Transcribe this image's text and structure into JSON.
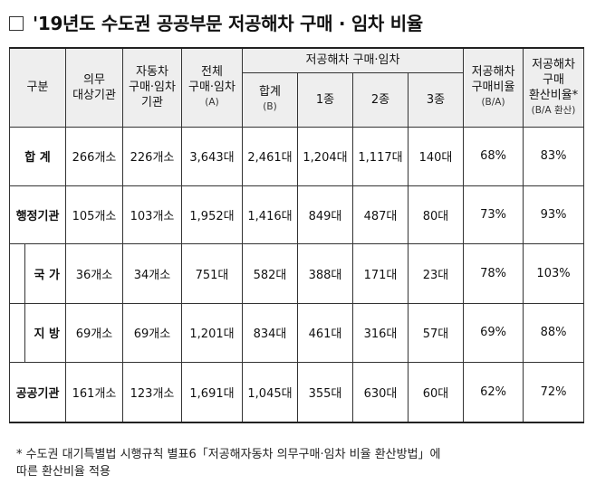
{
  "title": "'19년도 수도권 공공부문 저공해차 구매 · 임차 비율",
  "header": {
    "category": "구분",
    "mandatory": "의무\n대상기관",
    "purchased": "자동차\n구매·임차\n기관",
    "total": "전체\n구매·임차",
    "total_unit": "(A)",
    "lev_group": "저공해차 구매·임차",
    "sum": "합계",
    "sum_unit": "(B)",
    "type1": "1종",
    "type2": "2종",
    "type3": "3종",
    "ratio": "저공해차\n구매비율",
    "ratio_unit": "(B/A)",
    "conv": "저공해차\n구매\n환산비율*",
    "conv_unit": "(B/A 환산)"
  },
  "rows": [
    {
      "label": "합  계",
      "mandatory": "266개소",
      "purchased": "226개소",
      "total": "3,643대",
      "sum": "2,461대",
      "t1": "1,204대",
      "t2": "1,117대",
      "t3": "140대",
      "ratio": "68%",
      "conv": "83%"
    },
    {
      "label": "행정기관",
      "mandatory": "105개소",
      "purchased": "103개소",
      "total": "1,952대",
      "sum": "1,416대",
      "t1": "849대",
      "t2": "487대",
      "t3": "80대",
      "ratio": "73%",
      "conv": "93%"
    },
    {
      "label": "국 가",
      "mandatory": "36개소",
      "purchased": "34개소",
      "total": "751대",
      "sum": "582대",
      "t1": "388대",
      "t2": "171대",
      "t3": "23대",
      "ratio": "78%",
      "conv": "103%"
    },
    {
      "label": "지 방",
      "mandatory": "69개소",
      "purchased": "69개소",
      "total": "1,201대",
      "sum": "834대",
      "t1": "461대",
      "t2": "316대",
      "t3": "57대",
      "ratio": "69%",
      "conv": "88%"
    },
    {
      "label": "공공기관",
      "mandatory": "161개소",
      "purchased": "123개소",
      "total": "1,691대",
      "sum": "1,045대",
      "t1": "355대",
      "t2": "630대",
      "t3": "60대",
      "ratio": "62%",
      "conv": "72%"
    }
  ],
  "footnote": "*  수도권 대기특별법 시행규칙 별표6「저공해자동차 의무구매·임차 비율 환산방법」에\n   따른 환산비율 적용"
}
